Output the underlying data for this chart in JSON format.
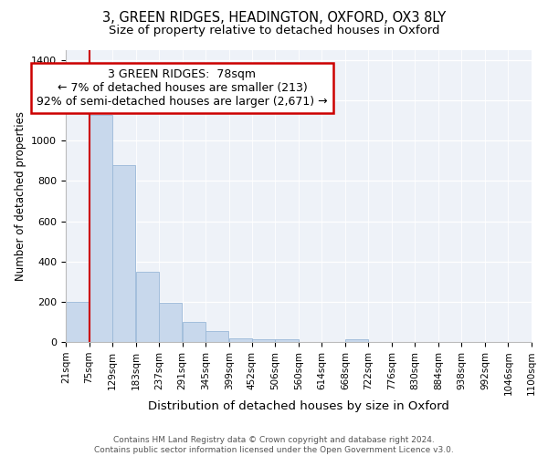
{
  "title1": "3, GREEN RIDGES, HEADINGTON, OXFORD, OX3 8LY",
  "title2": "Size of property relative to detached houses in Oxford",
  "xlabel": "Distribution of detached houses by size in Oxford",
  "ylabel": "Number of detached properties",
  "bin_labels": [
    "21sqm",
    "75sqm",
    "129sqm",
    "183sqm",
    "237sqm",
    "291sqm",
    "345sqm",
    "399sqm",
    "452sqm",
    "506sqm",
    "560sqm",
    "614sqm",
    "668sqm",
    "722sqm",
    "776sqm",
    "830sqm",
    "884sqm",
    "938sqm",
    "992sqm",
    "1046sqm",
    "1100sqm"
  ],
  "bin_edges": [
    21,
    75,
    129,
    183,
    237,
    291,
    345,
    399,
    452,
    506,
    560,
    614,
    668,
    722,
    776,
    830,
    884,
    938,
    992,
    1046,
    1100
  ],
  "bar_heights": [
    200,
    1130,
    880,
    350,
    195,
    100,
    55,
    20,
    14,
    12,
    0,
    0,
    12,
    0,
    0,
    0,
    0,
    0,
    0,
    0
  ],
  "bar_color": "#c8d8ec",
  "bar_edgecolor": "#9ab8d8",
  "marker_x": 75,
  "marker_color": "#cc0000",
  "annotation_text": "3 GREEN RIDGES:  78sqm\n← 7% of detached houses are smaller (213)\n92% of semi-detached houses are larger (2,671) →",
  "annotation_box_color": "#ffffff",
  "annotation_box_edgecolor": "#cc0000",
  "ylim": [
    0,
    1450
  ],
  "yticks": [
    0,
    200,
    400,
    600,
    800,
    1000,
    1200,
    1400
  ],
  "xlim_left": 21,
  "xlim_right": 1100,
  "background_color": "#eef2f8",
  "footer_text": "Contains HM Land Registry data © Crown copyright and database right 2024.\nContains public sector information licensed under the Open Government Licence v3.0.",
  "title1_fontsize": 10.5,
  "title2_fontsize": 9.5,
  "xlabel_fontsize": 9.5,
  "ylabel_fontsize": 8.5,
  "annotation_fontsize": 9,
  "tick_fontsize": 7.5,
  "ytick_fontsize": 8
}
